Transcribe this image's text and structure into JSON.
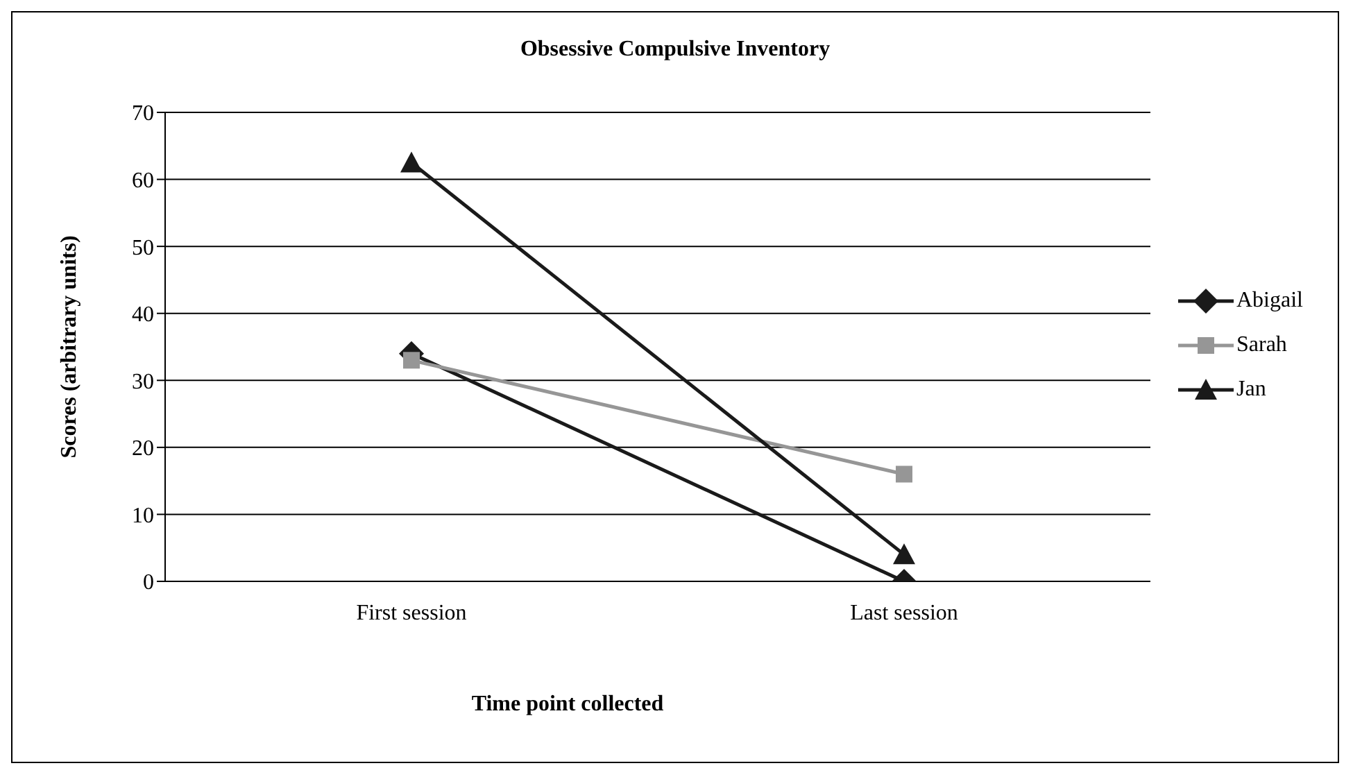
{
  "chart_data": {
    "type": "line",
    "title": "Obsessive Compulsive Inventory",
    "xlabel": "Time point collected",
    "ylabel": "Scores (arbitrary units)",
    "categories": [
      "First session",
      "Last session"
    ],
    "series": [
      {
        "name": "Abigail",
        "color": "#1a1a1a",
        "marker": "diamond",
        "values": [
          34,
          0
        ]
      },
      {
        "name": "Sarah",
        "color": "#969696",
        "marker": "square",
        "values": [
          33,
          16
        ]
      },
      {
        "name": "Jan",
        "color": "#1a1a1a",
        "marker": "triangle",
        "values": [
          62.5,
          4
        ]
      }
    ],
    "ylim": [
      0,
      70
    ],
    "yticks": [
      0,
      10,
      20,
      30,
      40,
      50,
      60,
      70
    ],
    "grid": "y",
    "legend": "right"
  }
}
